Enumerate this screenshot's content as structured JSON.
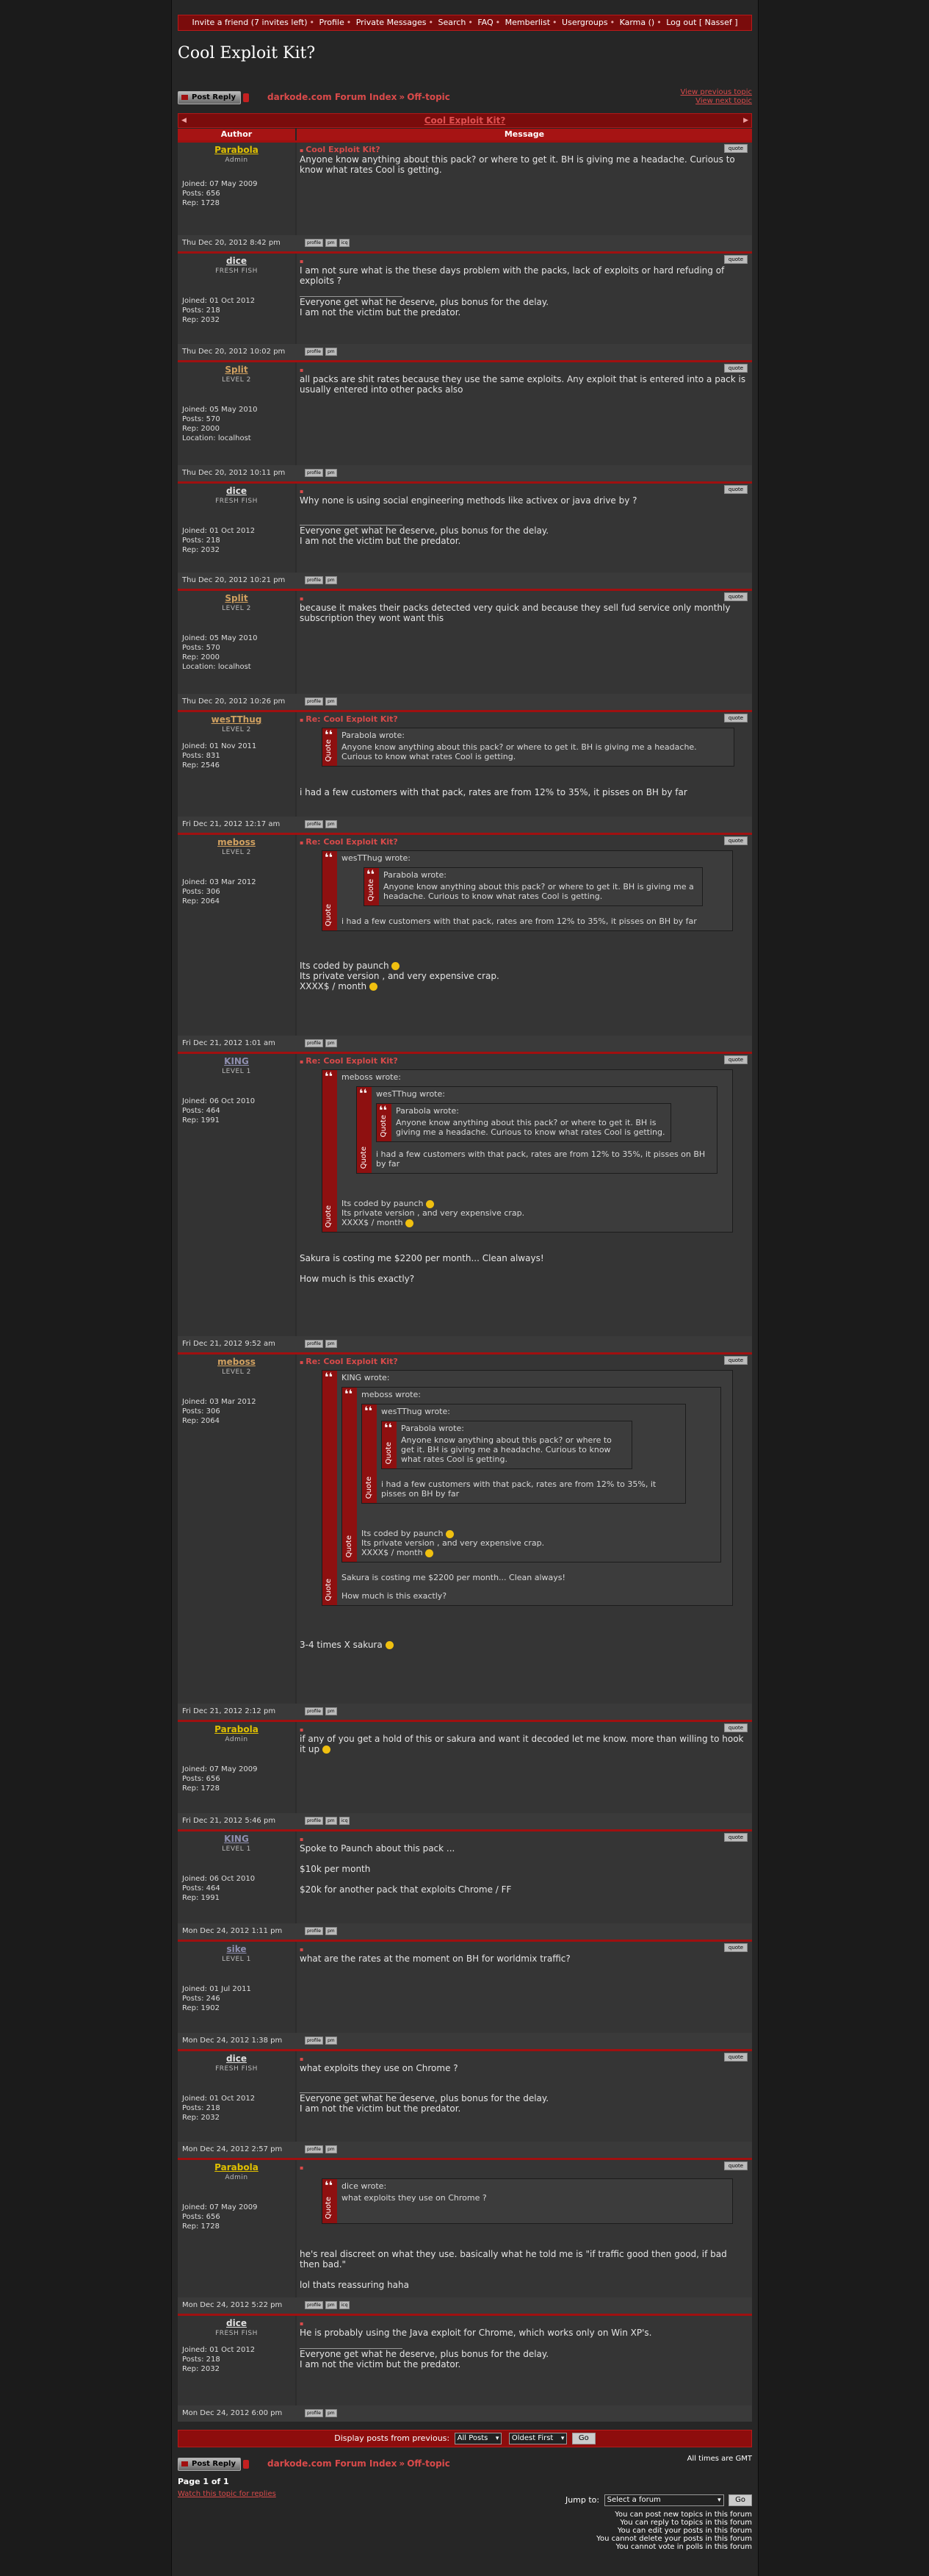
{
  "nav": [
    "Invite a friend (7 invites left)",
    "Profile",
    "Private Messages",
    "Search",
    "FAQ",
    "Memberlist",
    "Usergroups",
    "Karma ()",
    "Log out [ Nassef ]"
  ],
  "topic_title": "Cool Exploit Kit?",
  "post_reply": "Post Reply",
  "crumb": {
    "index": "darkode.com Forum Index",
    "arrow": "»",
    "forum": "Off-topic"
  },
  "view_prev": "View previous topic",
  "view_next": "View next topic",
  "titlebar": "Cool Exploit Kit?",
  "col_author": "Author",
  "col_message": "Message",
  "quote_label": "Quote",
  "wrote": "wrote:",
  "btn_profile": "profile",
  "btn_pm": "pm",
  "btn_icq": "icq",
  "btn_quote": "quote",
  "users": {
    "parabola": {
      "name": "Parabola",
      "rank": "Admin",
      "joined": "Joined: 07 May 2009",
      "posts": "Posts: 656",
      "rep": "Rep: 1728",
      "color": "#e0c000"
    },
    "dice": {
      "name": "dice",
      "rank": "FRESH FISH",
      "joined": "Joined: 01 Oct 2012",
      "posts": "Posts: 218",
      "rep": "Rep: 2032",
      "color": "#e0e0e0"
    },
    "split": {
      "name": "Split",
      "rank": "LEVEL 2",
      "joined": "Joined: 05 May 2010",
      "posts": "Posts: 570",
      "rep": "Rep: 2000",
      "loc": "Location: localhost",
      "color": "#d0a060"
    },
    "westthug": {
      "name": "wesTThug",
      "rank": "LEVEL 2",
      "joined": "Joined: 01 Nov 2011",
      "posts": "Posts: 831",
      "rep": "Rep: 2546",
      "color": "#d0a060"
    },
    "meboss": {
      "name": "meboss",
      "rank": "LEVEL 2",
      "joined": "Joined: 03 Mar 2012",
      "posts": "Posts: 306",
      "rep": "Rep: 2064",
      "color": "#d0a060"
    },
    "king": {
      "name": "KING",
      "rank": "LEVEL 1",
      "joined": "Joined: 06 Oct 2010",
      "posts": "Posts: 464",
      "rep": "Rep: 1991",
      "color": "#8f8fb0"
    },
    "sike": {
      "name": "sike",
      "rank": "LEVEL 1",
      "joined": "Joined: 01 Jul 2011",
      "posts": "Posts: 246",
      "rep": "Rep: 1902",
      "color": "#8f8fb0"
    }
  },
  "sig": [
    "Everyone get what he deserve, plus bonus for the delay.",
    "I am not the victim but the predator."
  ],
  "posts": {
    "p1": {
      "subject": "Cool Exploit Kit?",
      "text": "Anyone know anything about this pack? or where to get it. BH is giving me a headache. Curious to know what rates Cool is getting.",
      "date": "Thu Dec 20, 2012 8:42 pm"
    },
    "p2": {
      "text": "I am not sure what is the these days problem with the packs, lack of exploits or hard refuding of exploits ?",
      "date": "Thu Dec 20, 2012 10:02 pm"
    },
    "p3": {
      "text": "all packs are shit rates because they use the same exploits. Any exploit that is entered into a pack is usually entered into other packs also",
      "date": "Thu Dec 20, 2012 10:11 pm"
    },
    "p4": {
      "text": "Why none is using social engineering methods like activex or java drive by ?",
      "date": "Thu Dec 20, 2012 10:21 pm"
    },
    "p5": {
      "text": "because it makes their packs detected very quick and because they sell fud service only monthly subscription they wont want this",
      "date": "Thu Dec 20, 2012 10:26 pm"
    },
    "p6": {
      "subject": "Re: Cool Exploit Kit?",
      "text": "i had a few customers with that pack, rates are from 12% to 35%, it pisses on BH by far",
      "date": "Fri Dec 21, 2012 12:17 am"
    },
    "p7": {
      "subject": "Re: Cool Exploit Kit?",
      "t1": "Its coded by paunch",
      "t2": "Its private version , and very expensive crap.",
      "t3": "XXXX$ / month",
      "date": "Fri Dec 21, 2012 1:01 am"
    },
    "p8": {
      "subject": "Re: Cool Exploit Kit?",
      "t1": "Sakura is costing me $2200 per month... Clean always!",
      "t2": "How much is this exactly?",
      "date": "Fri Dec 21, 2012 9:52 am"
    },
    "p9": {
      "subject": "Re: Cool Exploit Kit?",
      "text": "3-4 times X sakura",
      "date": "Fri Dec 21, 2012 2:12 pm"
    },
    "p10": {
      "text": "if any of you get a hold of this or sakura and want it decoded let me know. more than willing to hook it up",
      "date": "Fri Dec 21, 2012 5:46 pm"
    },
    "p11": {
      "t1": "Spoke to Paunch about this pack ...",
      "t2": "$10k per month",
      "t3": "$20k for another pack that exploits Chrome / FF",
      "date": "Mon Dec 24, 2012 1:11 pm"
    },
    "p12": {
      "text": "what are the rates at the moment on BH for worldmix traffic?",
      "date": "Mon Dec 24, 2012 1:38 pm"
    },
    "p13": {
      "text": "what exploits they use on Chrome ?",
      "date": "Mon Dec 24, 2012 2:57 pm"
    },
    "p14": {
      "quote": "what exploits they use on Chrome ?",
      "t1": "he's real discreet on what they use. basically what he told me is \"if traffic good then good, if bad then bad.\"",
      "t2": "lol thats reassuring haha",
      "date": "Mon Dec 24, 2012 5:22 pm"
    },
    "p15": {
      "text": "He is probably using the Java exploit for Chrome, which works only on Win XP's.",
      "date": "Mon Dec 24, 2012 6:00 pm"
    }
  },
  "display_label": "Display posts from previous:",
  "display_sel": "All Posts",
  "order_sel": "Oldest First",
  "go": "Go",
  "times": "All times are GMT",
  "page": "Page 1 of 1",
  "watch": "Watch this topic for replies",
  "jump_label": "Jump to:",
  "jump_sel": "Select a forum",
  "perms": [
    "You can post new topics in this forum",
    "You can reply to topics in this forum",
    "You can edit your posts in this forum",
    "You cannot delete your posts in this forum",
    "You cannot vote in polls in this forum"
  ]
}
